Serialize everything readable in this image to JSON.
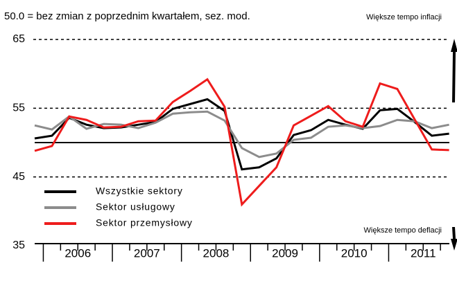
{
  "chart_data": {
    "type": "line",
    "subtitle": "50.0 = bez zmian z poprzednim kwartałem, sez. mod.",
    "annotations": [
      "Większe tempo inflacji",
      "Większe tempo deflacji"
    ],
    "categories": [
      null,
      null,
      null,
      null,
      null,
      null,
      null,
      null,
      null,
      null,
      null,
      null,
      null,
      null,
      null,
      null,
      null,
      null,
      null,
      null,
      null,
      null,
      null,
      null,
      null
    ],
    "year_groups": [
      "2006",
      "2007",
      "2008",
      "2009",
      "2010",
      "2011"
    ],
    "ylim": [
      35,
      65
    ],
    "yticks": [
      35,
      45,
      55,
      65
    ],
    "reference_line": 50,
    "grid": true,
    "legend": "lower left",
    "series": [
      {
        "name": "Wszystkie sektory",
        "color": "#000000",
        "values": [
          50.6,
          51.0,
          53.6,
          52.6,
          52.1,
          52.2,
          52.6,
          53.0,
          54.9,
          55.6,
          56.3,
          54.6,
          46.1,
          46.4,
          47.7,
          51.1,
          51.8,
          53.3,
          52.6,
          52.0,
          54.7,
          54.9,
          53.0,
          51.0,
          51.3
        ]
      },
      {
        "name": "Sektor usługowy",
        "color": "#8c8c8c",
        "values": [
          52.5,
          51.9,
          53.8,
          52.0,
          52.7,
          52.6,
          52.1,
          52.9,
          54.2,
          54.4,
          54.5,
          53.2,
          49.2,
          47.9,
          48.4,
          50.4,
          50.7,
          52.3,
          52.5,
          52.1,
          52.4,
          53.3,
          53.1,
          52.1,
          52.6
        ]
      },
      {
        "name": "Sektor przemysłowy",
        "color": "#ee1c1c",
        "values": [
          48.8,
          49.5,
          53.8,
          53.3,
          52.2,
          52.3,
          53.1,
          53.2,
          55.9,
          57.5,
          59.2,
          55.2,
          41.0,
          43.7,
          46.4,
          52.5,
          53.9,
          55.3,
          53.1,
          52.3,
          58.6,
          57.8,
          53.4,
          49.0,
          48.9
        ]
      }
    ]
  }
}
